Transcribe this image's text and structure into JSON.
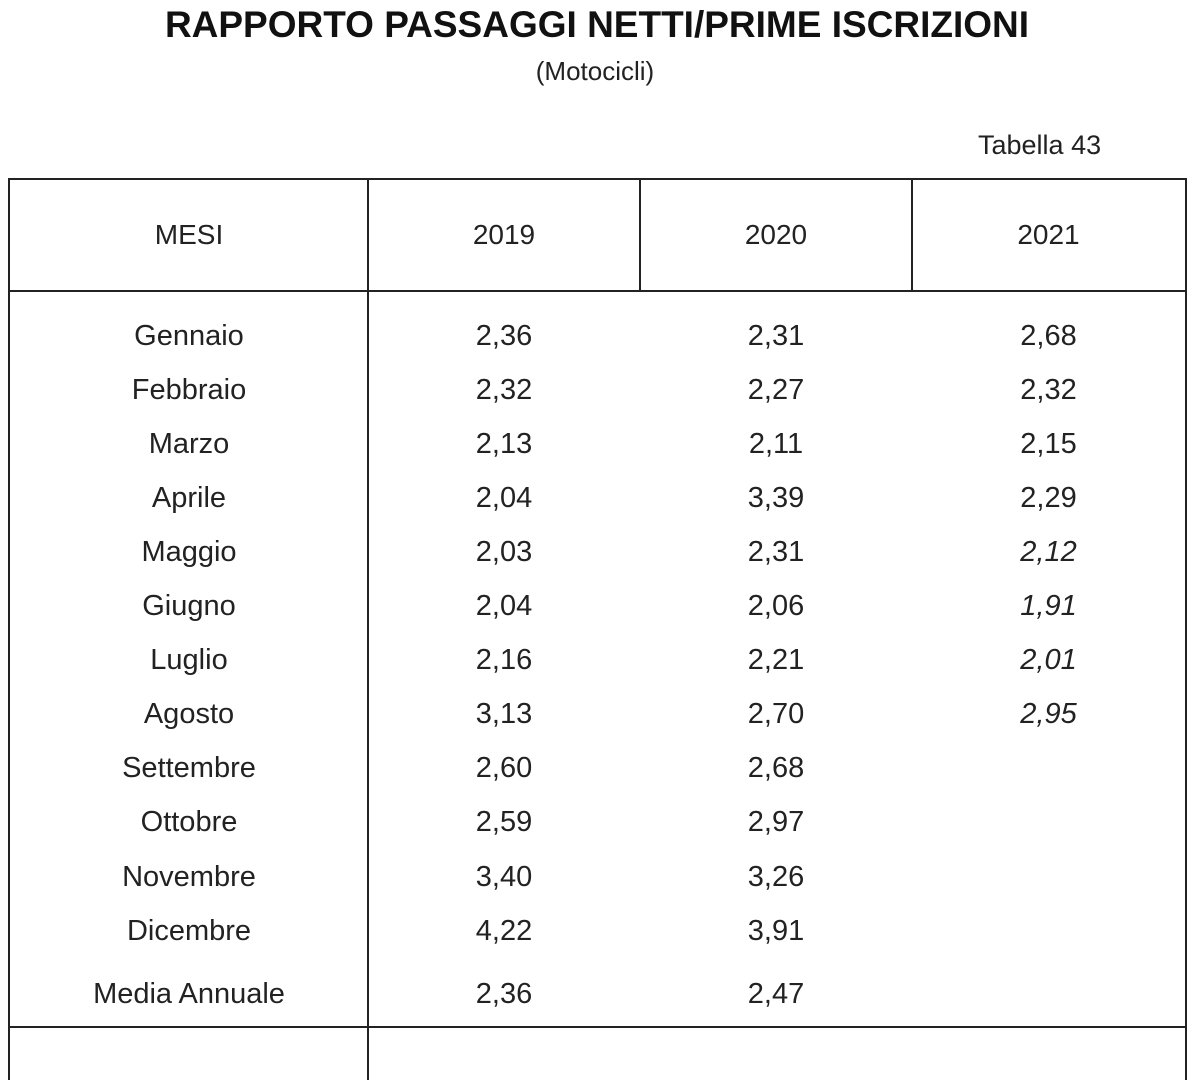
{
  "header": {
    "title": "RAPPORTO PASSAGGI NETTI/PRIME ISCRIZIONI",
    "subtitle": "(Motocicli)",
    "table_number": "Tabella 43"
  },
  "table": {
    "columns": [
      "MESI",
      "2019",
      "2020",
      "2021"
    ],
    "rows": [
      {
        "month": "Gennaio",
        "y2019": "2,36",
        "y2020": "2,31",
        "y2021": "2,68"
      },
      {
        "month": "Febbraio",
        "y2019": "2,32",
        "y2020": "2,27",
        "y2021": "2,32"
      },
      {
        "month": "Marzo",
        "y2019": "2,13",
        "y2020": "2,11",
        "y2021": "2,15"
      },
      {
        "month": "Aprile",
        "y2019": "2,04",
        "y2020": "3,39",
        "y2021": "2,29"
      },
      {
        "month": "Maggio",
        "y2019": "2,03",
        "y2020": "2,31",
        "y2021": "2,12"
      },
      {
        "month": "Giugno",
        "y2019": "2,04",
        "y2020": "2,06",
        "y2021": "1,91"
      },
      {
        "month": "Luglio",
        "y2019": "2,16",
        "y2020": "2,21",
        "y2021": "2,01"
      },
      {
        "month": "Agosto",
        "y2019": "3,13",
        "y2020": "2,70",
        "y2021": "2,95"
      },
      {
        "month": "Settembre",
        "y2019": "2,60",
        "y2020": "2,68",
        "y2021": ""
      },
      {
        "month": "Ottobre",
        "y2019": "2,59",
        "y2020": "2,97",
        "y2021": ""
      },
      {
        "month": "Novembre",
        "y2019": "3,40",
        "y2020": "3,26",
        "y2021": ""
      },
      {
        "month": "Dicembre",
        "y2019": "4,22",
        "y2020": "3,91",
        "y2021": ""
      }
    ],
    "annual_average": {
      "month": "Media Annuale",
      "y2019": "2,36",
      "y2020": "2,47",
      "y2021": ""
    }
  }
}
